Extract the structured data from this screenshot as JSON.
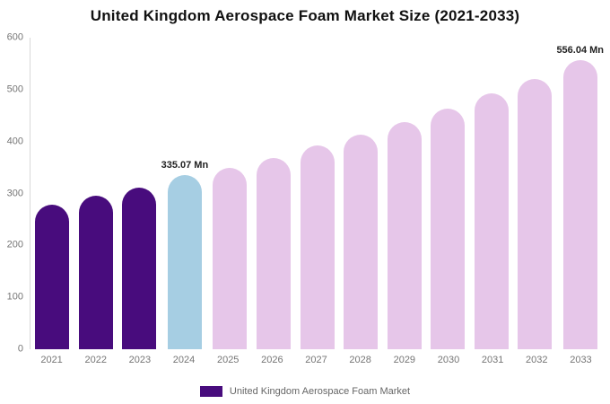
{
  "title": "United Kingdom Aerospace Foam Market Size (2021-2033)",
  "legend": {
    "label": "United Kingdom Aerospace Foam Market",
    "swatch_color": "#480c7d"
  },
  "colors": {
    "axis_line": "#d9d9d9",
    "tick_text": "#757575",
    "annotation_text": "#212121",
    "background": "#ffffff",
    "dark_purple": "#480c7d",
    "highlight_blue": "#a6cee3",
    "forecast_pink": "#e6c6e9"
  },
  "chart_data": {
    "type": "bar",
    "title": "United Kingdom Aerospace Foam Market Size (2021-2033)",
    "categories": [
      "2021",
      "2022",
      "2023",
      "2024",
      "2025",
      "2026",
      "2027",
      "2028",
      "2029",
      "2030",
      "2031",
      "2032",
      "2033"
    ],
    "values": [
      278,
      295,
      312,
      335.07,
      350,
      368,
      392,
      413,
      438,
      463,
      492,
      520,
      556.04
    ],
    "bar_colors": [
      "#480c7d",
      "#480c7d",
      "#480c7d",
      "#a6cee3",
      "#e6c6e9",
      "#e6c6e9",
      "#e6c6e9",
      "#e6c6e9",
      "#e6c6e9",
      "#e6c6e9",
      "#e6c6e9",
      "#e6c6e9",
      "#e6c6e9"
    ],
    "annotations": [
      {
        "category": "2024",
        "text": "335.07 Mn"
      },
      {
        "category": "2033",
        "text": "556.04 Mn"
      }
    ],
    "xlabel": "",
    "ylabel": "",
    "ylim": [
      0,
      600
    ],
    "y_ticks": [
      0,
      100,
      200,
      300,
      400,
      500,
      600
    ],
    "grid": false,
    "legend_position": "bottom",
    "legend_entries": [
      "United Kingdom Aerospace Foam Market"
    ]
  }
}
